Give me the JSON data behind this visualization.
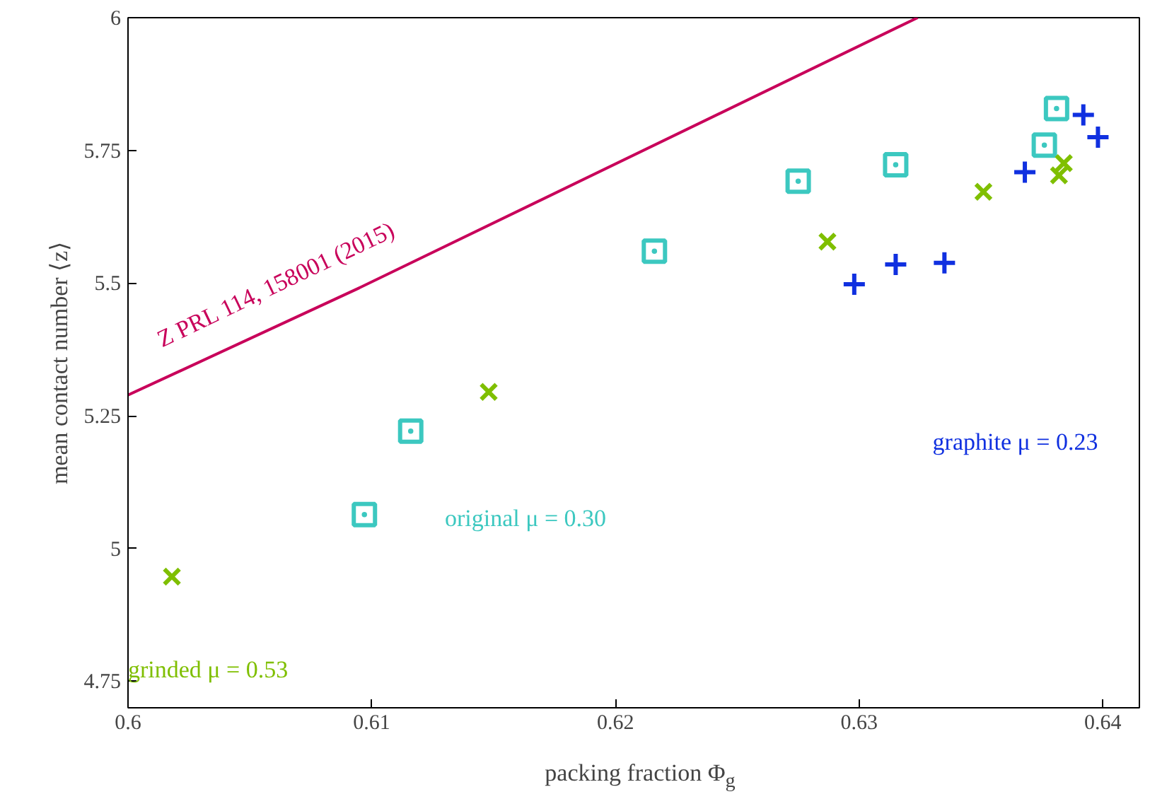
{
  "chart_data": {
    "type": "scatter",
    "xlabel": "packing fraction Φ$_{g}$",
    "ylabel": "mean contact number ⟨z⟩",
    "xlim": [
      0.6,
      0.6415
    ],
    "ylim": [
      4.7,
      6
    ],
    "xticks": [
      0.6,
      0.61,
      0.62,
      0.63,
      0.64
    ],
    "yticks": [
      4.75,
      5,
      5.25,
      5.5,
      5.75,
      6
    ],
    "grid": false,
    "series": [
      {
        "name": "original μ = 0.30",
        "color": "#3cc8c0",
        "marker": "square",
        "x": [
          0.6097,
          0.6116,
          0.6216,
          0.6275,
          0.6315,
          0.6376,
          0.6381
        ],
        "values": [
          5.064,
          5.221,
          5.56,
          5.692,
          5.723,
          5.76,
          5.829
        ]
      },
      {
        "name": "grinded μ = 0.53",
        "color": "#7fbf00",
        "marker": "cross",
        "x": [
          0.6018,
          0.6148,
          0.6287,
          0.6351,
          0.6384,
          0.6382
        ],
        "values": [
          4.947,
          5.295,
          5.578,
          5.672,
          5.726,
          5.703
        ]
      },
      {
        "name": "graphite μ = 0.23",
        "color": "#1030e0",
        "marker": "plus",
        "x": [
          0.6298,
          0.6315,
          0.6335,
          0.6368,
          0.6392,
          0.6398
        ],
        "values": [
          5.498,
          5.535,
          5.538,
          5.709,
          5.817,
          5.775
        ]
      },
      {
        "name": "Z PRL 114, 158001 (2015)",
        "type": "line",
        "color": "#c8005a",
        "x": [
          0.6,
          0.6094,
          0.6324
        ],
        "values": [
          5.289,
          5.489,
          6.0
        ]
      }
    ]
  }
}
